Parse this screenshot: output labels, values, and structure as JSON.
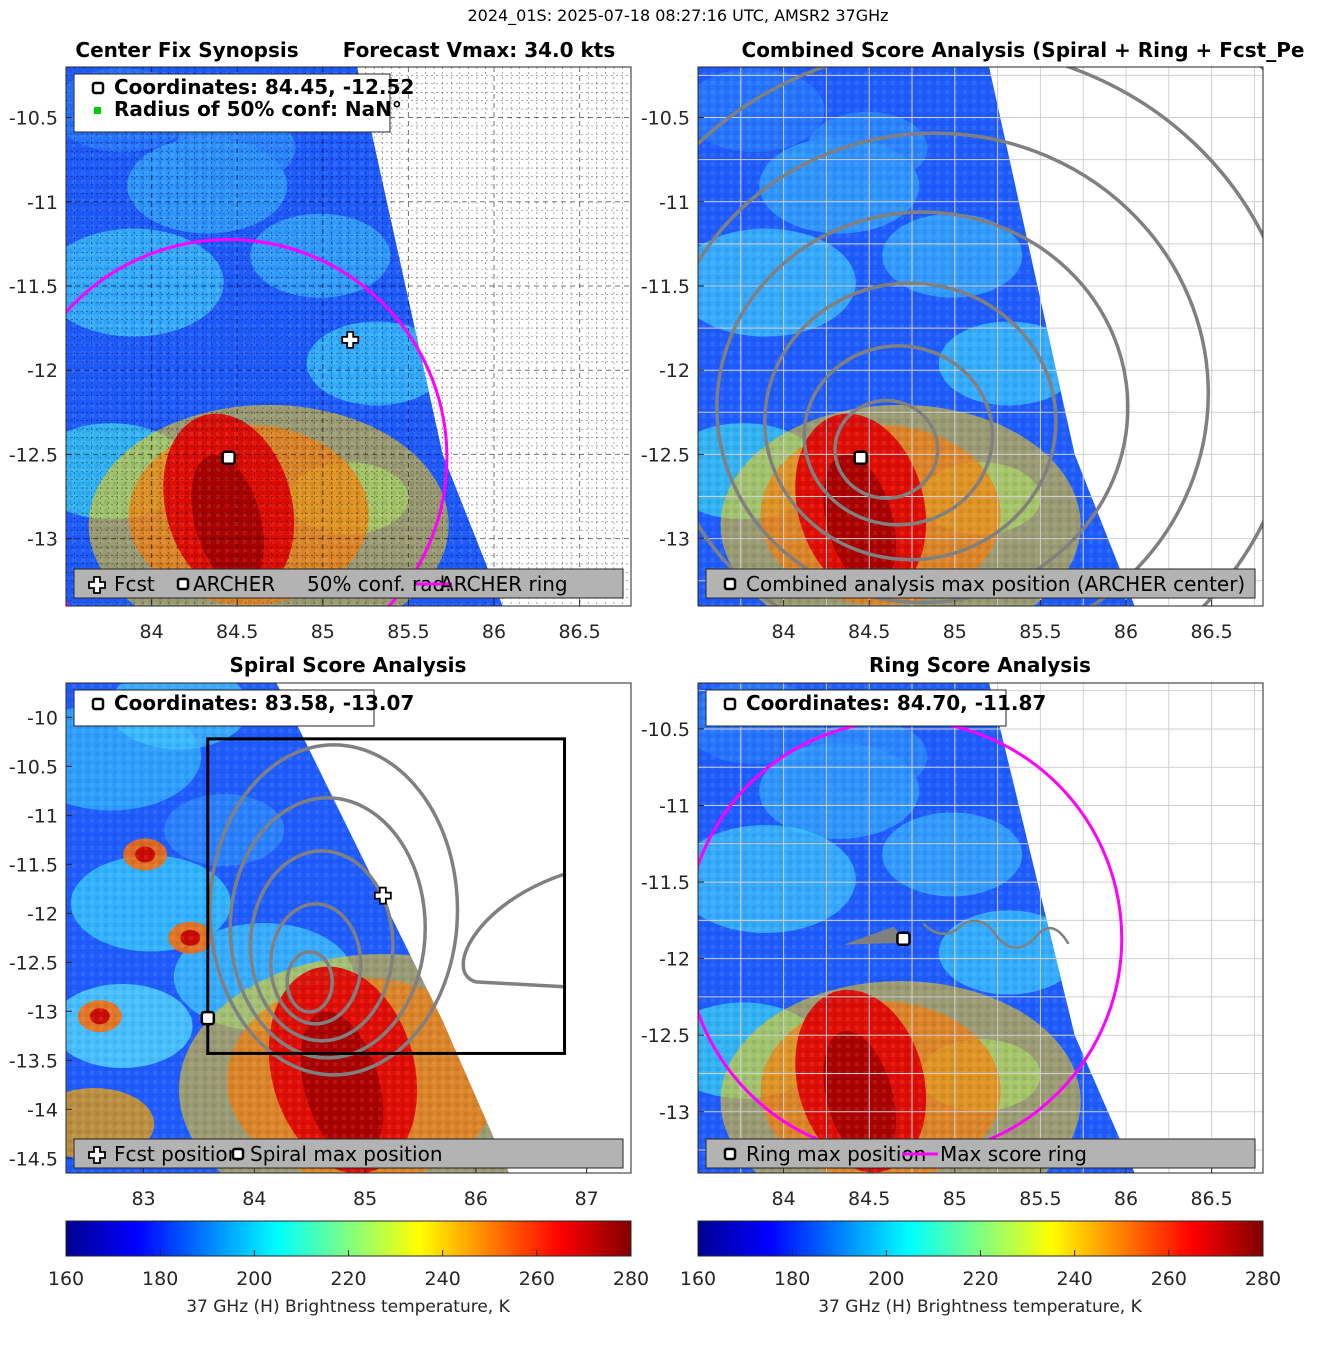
{
  "figure": {
    "main_title": "2024_01S: 2025-07-18 08:27:16 UTC, AMSR2 37GHz",
    "colors": {
      "magenta": "#ff00ff",
      "contour": "#808080",
      "legend_bg": "#b3b3b3",
      "green": "#00cc00"
    }
  },
  "chart_data": [
    {
      "id": "center-fix",
      "type": "heatmap",
      "title_left": "Center Fix Synopsis",
      "title_right": "Forecast Vmax: 34.0 kts",
      "xlim": [
        83.5,
        86.8
      ],
      "ylim": [
        -13.4,
        -10.2
      ],
      "xticks": [
        84,
        84.5,
        85,
        85.5,
        86,
        86.5
      ],
      "xtick_labels": [
        "84",
        "84.5",
        "85",
        "85.5",
        "86",
        "86.5"
      ],
      "yticks": [
        -10.5,
        -11,
        -11.5,
        -12,
        -12.5,
        -13
      ],
      "ytick_labels": [
        "-10.5",
        "-11",
        "-11.5",
        "-12",
        "-12.5",
        "-13"
      ],
      "swath_edge": [
        [
          85.2,
          -10.2
        ],
        [
          85.7,
          -12.5
        ],
        [
          86.05,
          -13.4
        ]
      ],
      "hot_core": {
        "x": 84.45,
        "y": -12.8
      },
      "grid": "dense dotted",
      "archer": {
        "x": 84.45,
        "y": -12.52
      },
      "fcst": {
        "x": 85.16,
        "y": -11.82
      },
      "ring": {
        "cx": 84.45,
        "cy": -12.52,
        "r": 1.5
      },
      "info_lines": [
        "Coordinates: 84.45, -12.52",
        "Radius of 50% conf: NaN°"
      ],
      "legend": [
        "Fcst",
        "ARCHER",
        "50% conf. rad.",
        "ARCHER ring"
      ]
    },
    {
      "id": "combined",
      "type": "heatmap",
      "title": "Combined Score Analysis (Spiral + Ring + Fcst_Pe",
      "xlim": [
        83.5,
        86.8
      ],
      "ylim": [
        -13.4,
        -10.2
      ],
      "xticks": [
        84,
        84.5,
        85,
        85.5,
        86,
        86.5
      ],
      "xtick_labels": [
        "84",
        "84.5",
        "85",
        "85.5",
        "86",
        "86.5"
      ],
      "yticks": [
        -10.5,
        -11,
        -11.5,
        -12,
        -12.5,
        -13
      ],
      "ytick_labels": [
        "-10.5",
        "-11",
        "-11.5",
        "-12",
        "-12.5",
        "-13"
      ],
      "swath_edge": [
        [
          85.2,
          -10.2
        ],
        [
          85.7,
          -12.5
        ],
        [
          86.05,
          -13.4
        ]
      ],
      "hot_core": {
        "x": 84.45,
        "y": -12.8
      },
      "grid": "solid",
      "archer": {
        "x": 84.45,
        "y": -12.52
      },
      "contour_radii": [
        0.3,
        0.55,
        0.85,
        1.2,
        1.6,
        2.05,
        2.55
      ],
      "legend": [
        "Combined analysis max position (ARCHER center)"
      ]
    },
    {
      "id": "spiral",
      "type": "heatmap",
      "title": "Spiral Score Analysis",
      "xlim": [
        82.3,
        87.4
      ],
      "ylim": [
        -14.65,
        -9.65
      ],
      "xticks": [
        83,
        84,
        85,
        86,
        87
      ],
      "xtick_labels": [
        "83",
        "84",
        "85",
        "86",
        "87"
      ],
      "yticks": [
        -10,
        -10.5,
        -11,
        -11.5,
        -12,
        -12.5,
        -13,
        -13.5,
        -14,
        -14.5
      ],
      "ytick_labels": [
        "-10",
        "-10.5",
        "-11",
        "-11.5",
        "-12",
        "-12.5",
        "-13",
        "-13.5",
        "-14",
        "-14.5"
      ],
      "swath_edge": [
        [
          84.2,
          -9.65
        ],
        [
          85.7,
          -13.1
        ],
        [
          86.3,
          -14.65
        ]
      ],
      "hot_core": {
        "x": 84.8,
        "y": -13.6
      },
      "grid": "none",
      "box": {
        "x0": 83.58,
        "x1": 86.8,
        "y0": -13.43,
        "y1": -10.22
      },
      "spiral_max": {
        "x": 83.58,
        "y": -13.07
      },
      "fcst": {
        "x": 85.16,
        "y": -11.82
      },
      "info_lines": [
        "Coordinates: 83.58, -13.07"
      ],
      "legend": [
        "Fcst position",
        "Spiral max position"
      ]
    },
    {
      "id": "ring",
      "type": "heatmap",
      "title": "Ring Score Analysis",
      "xlim": [
        83.5,
        86.8
      ],
      "ylim": [
        -13.4,
        -10.2
      ],
      "xticks": [
        84,
        84.5,
        85,
        85.5,
        86,
        86.5
      ],
      "xtick_labels": [
        "84",
        "84.5",
        "85",
        "85.5",
        "86",
        "86.5"
      ],
      "yticks": [
        -10.5,
        -11,
        -11.5,
        -12,
        -12.5,
        -13
      ],
      "ytick_labels": [
        "-10.5",
        "-11",
        "-11.5",
        "-12",
        "-12.5",
        "-13"
      ],
      "swath_edge": [
        [
          85.2,
          -10.2
        ],
        [
          85.7,
          -12.5
        ],
        [
          86.05,
          -13.4
        ]
      ],
      "hot_core": {
        "x": 84.45,
        "y": -12.8
      },
      "grid": "solid",
      "ring_max": {
        "x": 84.7,
        "y": -11.87
      },
      "ring": {
        "cx": 84.7,
        "cy": -11.87,
        "r": 1.5
      },
      "info_lines": [
        "Coordinates: 84.70, -11.87"
      ],
      "legend": [
        "Ring max position",
        "Max score ring"
      ]
    },
    {
      "id": "colorbar-left",
      "type": "colorbar",
      "range": [
        160,
        280
      ],
      "ticks": [
        "160",
        "180",
        "200",
        "220",
        "240",
        "260",
        "280"
      ],
      "label": "37 GHz (H) Brightness temperature, K"
    },
    {
      "id": "colorbar-right",
      "type": "colorbar",
      "range": [
        160,
        280
      ],
      "ticks": [
        "160",
        "180",
        "200",
        "220",
        "240",
        "260",
        "280"
      ],
      "label": "37 GHz (H) Brightness temperature, K"
    }
  ]
}
